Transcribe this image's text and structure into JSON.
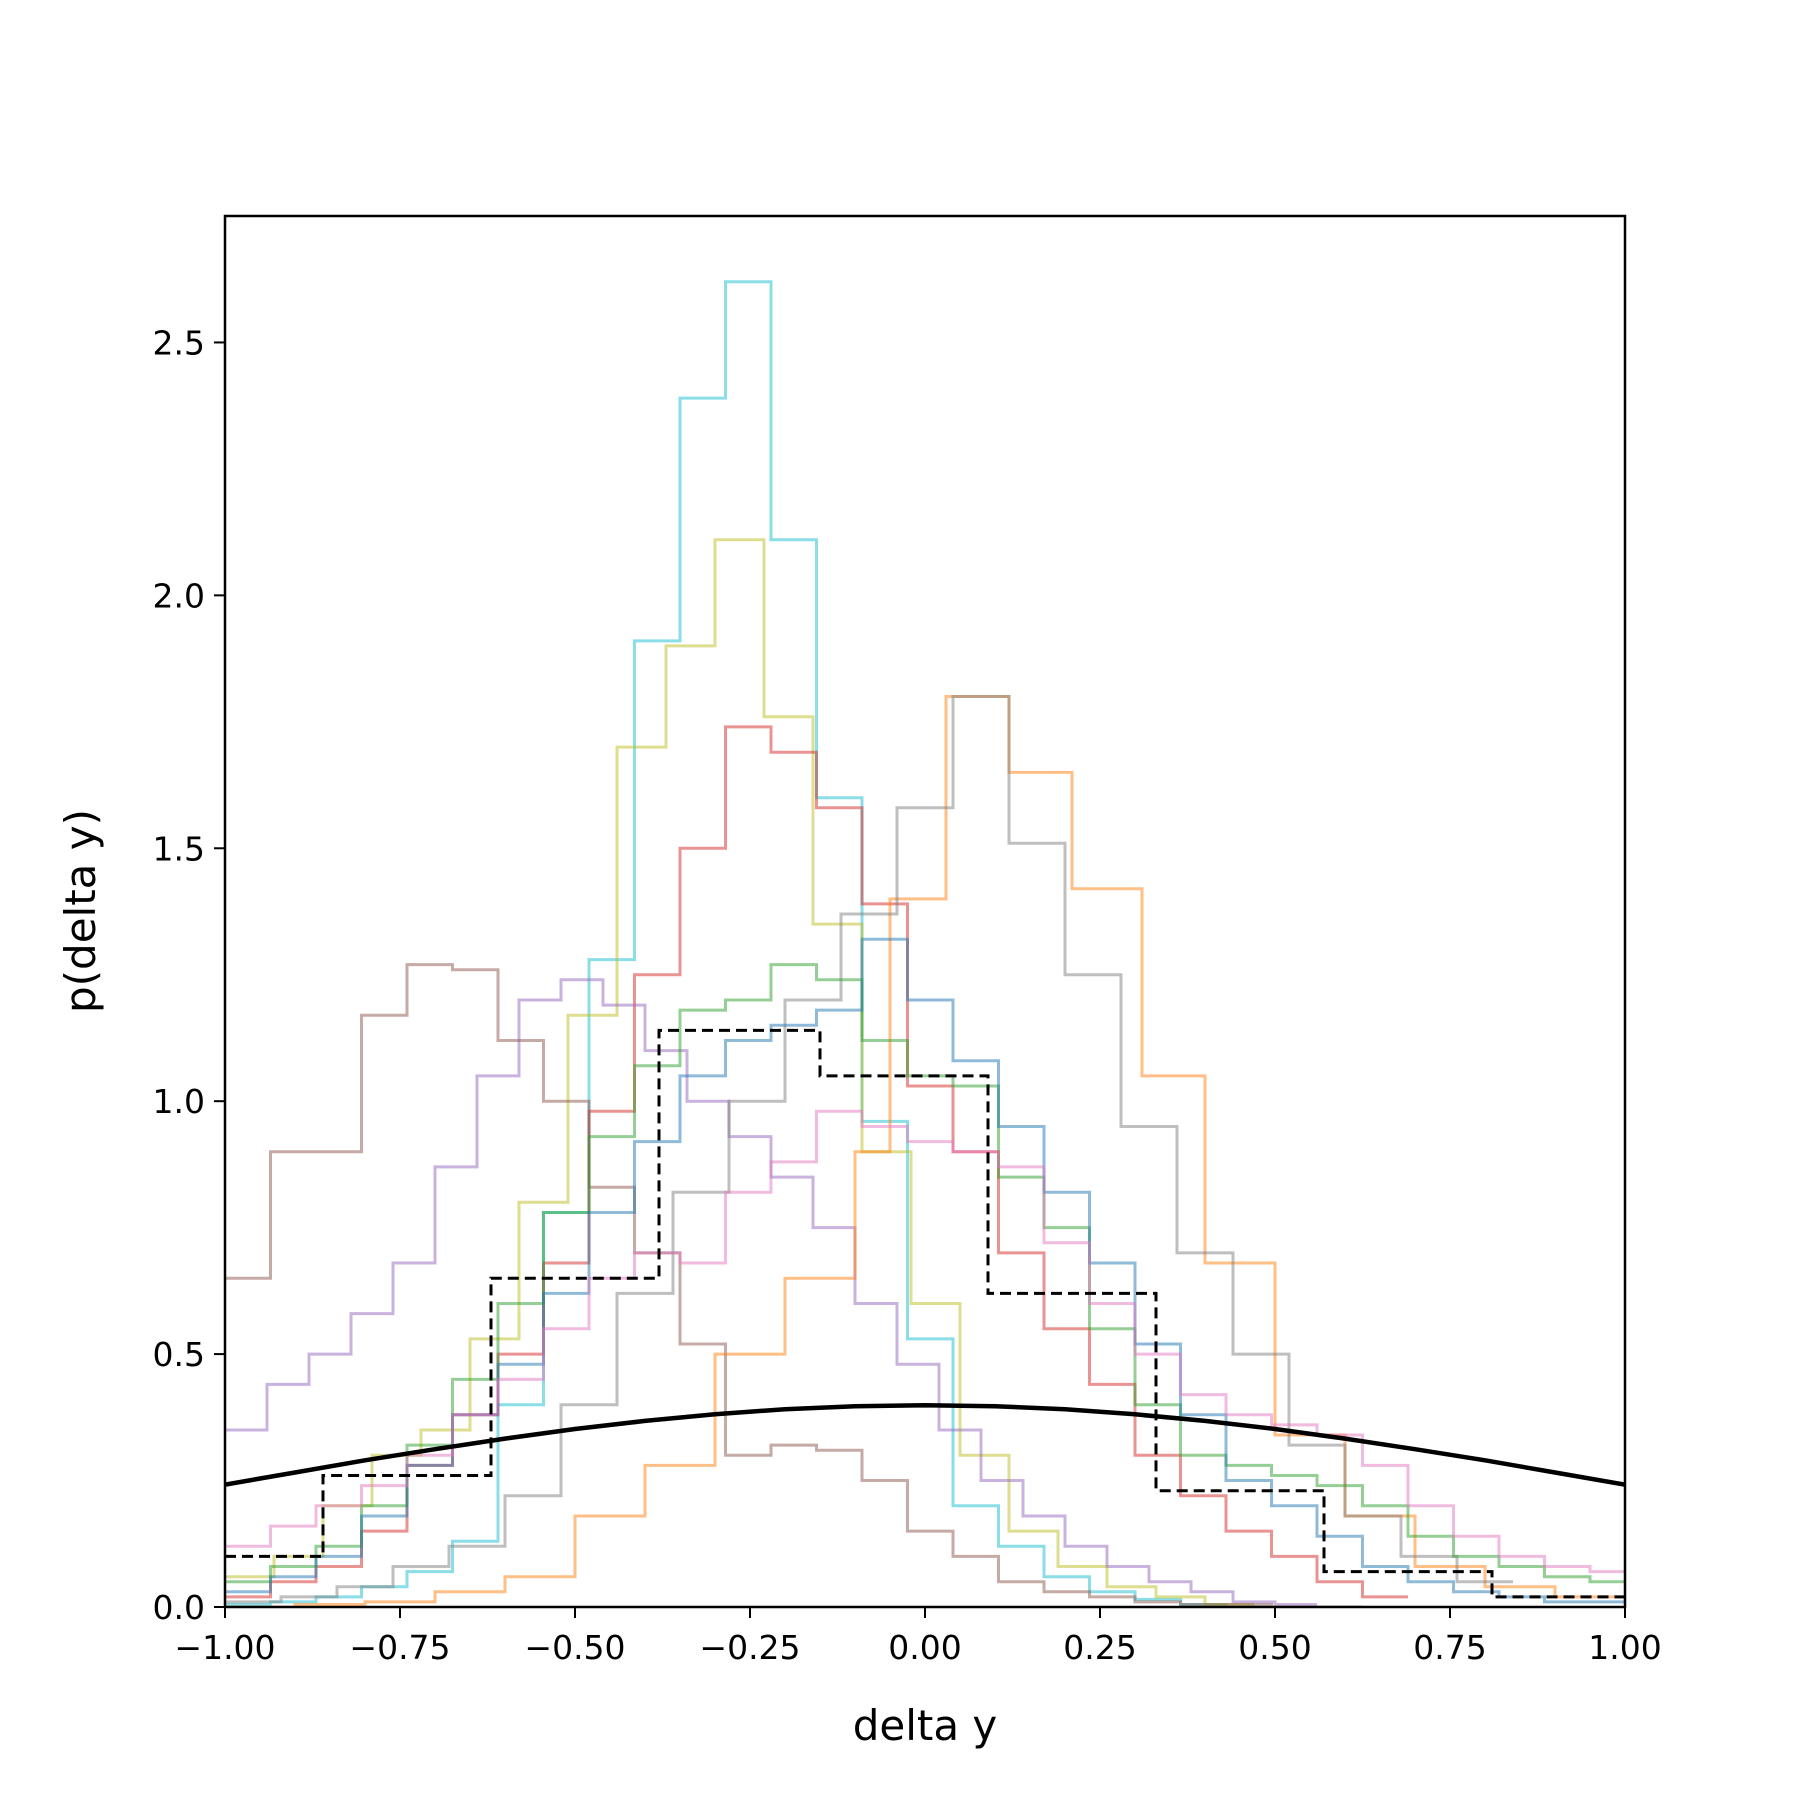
{
  "chart_data": {
    "type": "histogram",
    "title": "",
    "xlabel": "delta y",
    "ylabel": "p(delta y)",
    "xlim": [
      -1.0,
      1.0
    ],
    "ylim": [
      0.0,
      2.75
    ],
    "grid": false,
    "legend": "none",
    "x_ticks": [
      -1.0,
      -0.75,
      -0.5,
      -0.25,
      0.0,
      0.25,
      0.5,
      0.75,
      1.0
    ],
    "x_tick_labels": [
      "−1.00",
      "−0.75",
      "−0.50",
      "−0.25",
      "0.00",
      "0.25",
      "0.50",
      "0.75",
      "1.00"
    ],
    "y_ticks": [
      0.0,
      0.5,
      1.0,
      1.5,
      2.0,
      2.5
    ],
    "y_tick_labels": [
      "0.0",
      "0.5",
      "1.0",
      "1.5",
      "2.0",
      "2.5"
    ],
    "series": [
      {
        "color": "#17becf",
        "style": "step",
        "opacity": 0.5,
        "edges": [
          -1.0,
          -0.935,
          -0.87,
          -0.805,
          -0.74,
          -0.675,
          -0.61,
          -0.545,
          -0.48,
          -0.415,
          -0.35,
          -0.285,
          -0.22,
          -0.155,
          -0.09,
          -0.025,
          0.04,
          0.105,
          0.17,
          0.235,
          0.3,
          0.365,
          0.43,
          0.495
        ],
        "values": [
          0.005,
          0.01,
          0.02,
          0.04,
          0.07,
          0.13,
          0.4,
          0.78,
          1.28,
          1.91,
          2.39,
          2.62,
          2.11,
          1.6,
          0.96,
          0.53,
          0.2,
          0.12,
          0.06,
          0.03,
          0.015,
          0.005,
          0.0
        ]
      },
      {
        "color": "#bcbd22",
        "style": "step",
        "opacity": 0.5,
        "edges": [
          -1.0,
          -0.93,
          -0.86,
          -0.79,
          -0.72,
          -0.65,
          -0.58,
          -0.51,
          -0.44,
          -0.37,
          -0.3,
          -0.23,
          -0.16,
          -0.09,
          -0.02,
          0.05,
          0.12,
          0.19,
          0.26,
          0.33,
          0.4,
          0.47
        ],
        "values": [
          0.06,
          0.1,
          0.2,
          0.3,
          0.35,
          0.53,
          0.8,
          1.17,
          1.7,
          1.9,
          2.11,
          1.76,
          1.35,
          0.9,
          0.6,
          0.3,
          0.15,
          0.08,
          0.04,
          0.02,
          0.005
        ]
      },
      {
        "color": "#d62728",
        "style": "step",
        "opacity": 0.5,
        "edges": [
          -1.0,
          -0.935,
          -0.87,
          -0.805,
          -0.74,
          -0.675,
          -0.61,
          -0.545,
          -0.48,
          -0.415,
          -0.35,
          -0.285,
          -0.22,
          -0.155,
          -0.09,
          -0.025,
          0.04,
          0.105,
          0.17,
          0.235,
          0.3,
          0.365,
          0.43,
          0.495,
          0.56,
          0.625,
          0.69
        ],
        "values": [
          0.02,
          0.05,
          0.08,
          0.15,
          0.28,
          0.38,
          0.5,
          0.68,
          0.98,
          1.25,
          1.5,
          1.74,
          1.69,
          1.58,
          1.39,
          1.03,
          0.9,
          0.7,
          0.55,
          0.44,
          0.3,
          0.22,
          0.15,
          0.1,
          0.05,
          0.02
        ]
      },
      {
        "color": "#9467bd",
        "style": "step",
        "opacity": 0.5,
        "edges": [
          -1.0,
          -0.94,
          -0.88,
          -0.82,
          -0.76,
          -0.7,
          -0.64,
          -0.58,
          -0.52,
          -0.46,
          -0.4,
          -0.34,
          -0.28,
          -0.22,
          -0.16,
          -0.1,
          -0.04,
          0.02,
          0.08,
          0.14,
          0.2,
          0.26,
          0.32,
          0.38,
          0.44,
          0.5,
          0.56
        ],
        "values": [
          0.35,
          0.44,
          0.5,
          0.58,
          0.68,
          0.87,
          1.05,
          1.2,
          1.24,
          1.19,
          1.1,
          1.0,
          0.93,
          0.85,
          0.75,
          0.6,
          0.48,
          0.35,
          0.25,
          0.18,
          0.12,
          0.08,
          0.05,
          0.03,
          0.01,
          0.005
        ]
      },
      {
        "color": "#8c564b",
        "style": "step",
        "opacity": 0.5,
        "edges": [
          -1.0,
          -0.935,
          -0.87,
          -0.805,
          -0.74,
          -0.675,
          -0.61,
          -0.545,
          -0.48,
          -0.415,
          -0.35,
          -0.285,
          -0.22,
          -0.155,
          -0.09,
          -0.025,
          0.04,
          0.105,
          0.17,
          0.235,
          0.3,
          0.365,
          0.43,
          0.495,
          0.56,
          0.625
        ],
        "values": [
          0.65,
          0.9,
          0.9,
          1.17,
          1.27,
          1.26,
          1.12,
          1.0,
          0.83,
          0.7,
          0.52,
          0.3,
          0.32,
          0.31,
          0.25,
          0.15,
          0.1,
          0.05,
          0.03,
          0.02,
          0.01,
          0.005,
          0.005,
          0.0,
          0.0
        ]
      },
      {
        "color": "#ff7f0e",
        "style": "step",
        "opacity": 0.5,
        "edges": [
          -1.0,
          -0.9,
          -0.8,
          -0.7,
          -0.6,
          -0.5,
          -0.4,
          -0.3,
          -0.2,
          -0.1,
          -0.05,
          0.03,
          0.12,
          0.21,
          0.31,
          0.4,
          0.5,
          0.6,
          0.7,
          0.8,
          0.9,
          1.0
        ],
        "values": [
          0.0,
          0.005,
          0.01,
          0.03,
          0.06,
          0.18,
          0.28,
          0.5,
          0.65,
          0.9,
          1.4,
          1.8,
          1.65,
          1.42,
          1.05,
          0.68,
          0.34,
          0.18,
          0.08,
          0.04,
          0.02
        ]
      },
      {
        "color": "#7f7f7f",
        "style": "step",
        "opacity": 0.5,
        "edges": [
          -1.0,
          -0.92,
          -0.84,
          -0.76,
          -0.68,
          -0.6,
          -0.52,
          -0.44,
          -0.36,
          -0.28,
          -0.2,
          -0.12,
          -0.04,
          0.04,
          0.12,
          0.2,
          0.28,
          0.36,
          0.44,
          0.52,
          0.6,
          0.68,
          0.76,
          0.84
        ],
        "values": [
          0.01,
          0.02,
          0.04,
          0.08,
          0.12,
          0.22,
          0.4,
          0.62,
          0.82,
          1.0,
          1.2,
          1.37,
          1.58,
          1.8,
          1.51,
          1.25,
          0.95,
          0.7,
          0.5,
          0.32,
          0.18,
          0.1,
          0.05
        ]
      },
      {
        "color": "#2ca02c",
        "style": "step",
        "opacity": 0.5,
        "edges": [
          -1.0,
          -0.935,
          -0.87,
          -0.805,
          -0.74,
          -0.675,
          -0.61,
          -0.545,
          -0.48,
          -0.415,
          -0.35,
          -0.285,
          -0.22,
          -0.155,
          -0.09,
          -0.025,
          0.04,
          0.105,
          0.17,
          0.235,
          0.3,
          0.365,
          0.43,
          0.495,
          0.56,
          0.625,
          0.69,
          0.755,
          0.82,
          0.885,
          0.95,
          1.0
        ],
        "values": [
          0.05,
          0.08,
          0.12,
          0.2,
          0.32,
          0.45,
          0.6,
          0.78,
          0.93,
          1.07,
          1.18,
          1.2,
          1.27,
          1.24,
          1.12,
          1.05,
          1.03,
          0.85,
          0.75,
          0.55,
          0.4,
          0.3,
          0.28,
          0.26,
          0.24,
          0.2,
          0.14,
          0.1,
          0.08,
          0.06,
          0.05
        ]
      },
      {
        "color": "#1f77b4",
        "style": "step",
        "opacity": 0.5,
        "edges": [
          -1.0,
          -0.935,
          -0.87,
          -0.805,
          -0.74,
          -0.675,
          -0.61,
          -0.545,
          -0.48,
          -0.415,
          -0.35,
          -0.285,
          -0.22,
          -0.155,
          -0.09,
          -0.025,
          0.04,
          0.105,
          0.17,
          0.235,
          0.3,
          0.365,
          0.43,
          0.495,
          0.56,
          0.625,
          0.69,
          0.755,
          0.82,
          0.885,
          0.95,
          1.0
        ],
        "values": [
          0.03,
          0.06,
          0.1,
          0.18,
          0.28,
          0.38,
          0.48,
          0.62,
          0.78,
          0.92,
          1.05,
          1.12,
          1.15,
          1.18,
          1.32,
          1.2,
          1.08,
          0.95,
          0.82,
          0.68,
          0.52,
          0.38,
          0.25,
          0.2,
          0.14,
          0.08,
          0.05,
          0.03,
          0.02,
          0.01,
          0.01
        ]
      },
      {
        "color": "#e377c2",
        "style": "step",
        "opacity": 0.5,
        "edges": [
          -1.0,
          -0.935,
          -0.87,
          -0.805,
          -0.74,
          -0.675,
          -0.61,
          -0.545,
          -0.48,
          -0.415,
          -0.35,
          -0.285,
          -0.22,
          -0.155,
          -0.09,
          -0.025,
          0.04,
          0.105,
          0.17,
          0.235,
          0.3,
          0.365,
          0.43,
          0.495,
          0.56,
          0.625,
          0.69,
          0.755,
          0.82,
          0.885,
          0.95,
          1.0
        ],
        "values": [
          0.12,
          0.16,
          0.2,
          0.24,
          0.3,
          0.38,
          0.45,
          0.55,
          0.65,
          0.7,
          0.68,
          0.82,
          0.88,
          0.98,
          0.95,
          0.92,
          0.9,
          0.87,
          0.72,
          0.6,
          0.5,
          0.42,
          0.38,
          0.36,
          0.34,
          0.28,
          0.2,
          0.14,
          0.1,
          0.08,
          0.07
        ]
      },
      {
        "color": "#000000",
        "style": "dashed-step",
        "opacity": 1.0,
        "edges": [
          -1.0,
          -0.86,
          -0.62,
          -0.38,
          -0.15,
          0.09,
          0.33,
          0.57,
          0.81,
          1.0
        ],
        "values": [
          0.1,
          0.26,
          0.65,
          1.14,
          1.05,
          0.62,
          0.23,
          0.07,
          0.02
        ]
      },
      {
        "color": "#000000",
        "style": "solid-curve",
        "opacity": 1.0,
        "description_values": {
          "mean": 0.0,
          "std": 1.0,
          "peak": 0.399
        },
        "x": [
          -1.0,
          -0.9,
          -0.8,
          -0.7,
          -0.6,
          -0.5,
          -0.4,
          -0.3,
          -0.2,
          -0.1,
          0.0,
          0.1,
          0.2,
          0.3,
          0.4,
          0.5,
          0.6,
          0.7,
          0.8,
          0.9,
          1.0
        ],
        "y": [
          0.242,
          0.266,
          0.29,
          0.312,
          0.333,
          0.352,
          0.368,
          0.381,
          0.391,
          0.397,
          0.399,
          0.397,
          0.391,
          0.381,
          0.368,
          0.352,
          0.333,
          0.312,
          0.29,
          0.266,
          0.242
        ]
      }
    ]
  }
}
